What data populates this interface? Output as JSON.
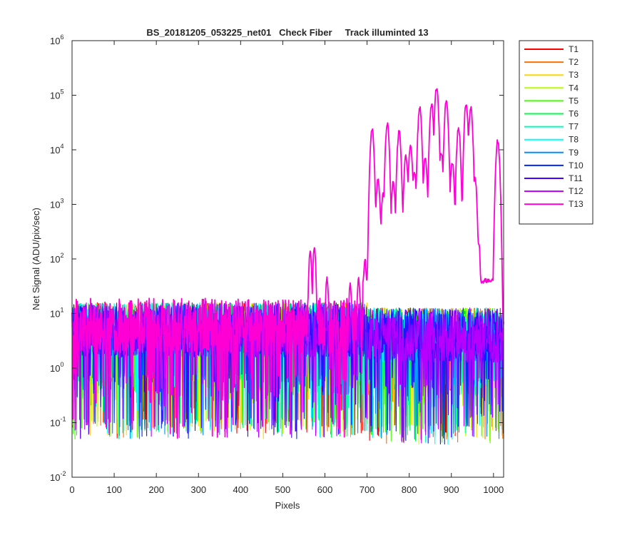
{
  "chart_data": {
    "type": "line",
    "title": "BS_20181205_053225_net01   Check Fiber     Track illuminted 13",
    "xlabel": "Pixels",
    "ylabel": "Net Signal (ADU/pix/sec)",
    "xlim": [
      0,
      1024
    ],
    "ylim": [
      0.01,
      1000000
    ],
    "yscale": "log",
    "xticks": [
      0,
      100,
      200,
      300,
      400,
      500,
      600,
      700,
      800,
      900,
      1000
    ],
    "yticks": [
      {
        "value": 0.01,
        "base": "10",
        "exp": "-2"
      },
      {
        "value": 0.1,
        "base": "10",
        "exp": "-1"
      },
      {
        "value": 1,
        "base": "10",
        "exp": "0"
      },
      {
        "value": 10,
        "base": "10",
        "exp": "1"
      },
      {
        "value": 100,
        "base": "10",
        "exp": "2"
      },
      {
        "value": 1000,
        "base": "10",
        "exp": "3"
      },
      {
        "value": 10000,
        "base": "10",
        "exp": "4"
      },
      {
        "value": 100000,
        "base": "10",
        "exp": "5"
      },
      {
        "value": 1000000,
        "base": "10",
        "exp": "6"
      }
    ],
    "grid": false,
    "legend_position": "outside-right",
    "illuminated_track": "T13",
    "series": [
      {
        "name": "T1",
        "color": "#ff0000",
        "noise_median": 5,
        "noise_min": 0.05
      },
      {
        "name": "T2",
        "color": "#ff6f00",
        "noise_median": 5,
        "noise_min": 0.05
      },
      {
        "name": "T3",
        "color": "#ffd700",
        "noise_median": 5,
        "noise_min": 0.05
      },
      {
        "name": "T4",
        "color": "#b8ff00",
        "noise_median": 5,
        "noise_min": 0.05
      },
      {
        "name": "T5",
        "color": "#48ff00",
        "noise_median": 5,
        "noise_min": 0.05
      },
      {
        "name": "T6",
        "color": "#00ff48",
        "noise_median": 5,
        "noise_min": 0.05
      },
      {
        "name": "T7",
        "color": "#00ffb8",
        "noise_median": 5,
        "noise_min": 0.05
      },
      {
        "name": "T8",
        "color": "#00ffff",
        "noise_median": 5,
        "noise_min": 0.05
      },
      {
        "name": "T9",
        "color": "#0090ff",
        "noise_median": 5,
        "noise_min": 0.05
      },
      {
        "name": "T10",
        "color": "#0024ff",
        "noise_median": 5,
        "noise_min": 0.05
      },
      {
        "name": "T11",
        "color": "#4800ff",
        "noise_median": 5,
        "noise_min": 0.05
      },
      {
        "name": "T12",
        "color": "#b800ff",
        "noise_median": 5,
        "noise_min": 0.05
      },
      {
        "name": "T13",
        "color": "#ff00d4",
        "noise_median": 6,
        "noise_min": 0.05,
        "peaks": [
          {
            "x": 565,
            "y": 140
          },
          {
            "x": 575,
            "y": 160
          },
          {
            "x": 605,
            "y": 45
          },
          {
            "x": 660,
            "y": 35
          },
          {
            "x": 680,
            "y": 45
          },
          {
            "x": 695,
            "y": 100
          },
          {
            "x": 705,
            "y": 130
          },
          {
            "x": 712,
            "y": 25000
          },
          {
            "x": 726,
            "y": 3000
          },
          {
            "x": 738,
            "y": 1500
          },
          {
            "x": 748,
            "y": 30000
          },
          {
            "x": 762,
            "y": 2500
          },
          {
            "x": 776,
            "y": 22000
          },
          {
            "x": 792,
            "y": 8000
          },
          {
            "x": 803,
            "y": 12000
          },
          {
            "x": 812,
            "y": 4000
          },
          {
            "x": 825,
            "y": 60000
          },
          {
            "x": 838,
            "y": 7000
          },
          {
            "x": 853,
            "y": 70000
          },
          {
            "x": 865,
            "y": 140000
          },
          {
            "x": 876,
            "y": 9000
          },
          {
            "x": 888,
            "y": 80000
          },
          {
            "x": 902,
            "y": 6000
          },
          {
            "x": 917,
            "y": 25000
          },
          {
            "x": 935,
            "y": 70000
          },
          {
            "x": 946,
            "y": 60000
          },
          {
            "x": 956,
            "y": 3000
          },
          {
            "x": 965,
            "y": 200
          },
          {
            "x": 1010,
            "y": 15000
          }
        ],
        "plateau": {
          "x": [
            690,
            1000
          ],
          "y": 40
        }
      }
    ]
  }
}
